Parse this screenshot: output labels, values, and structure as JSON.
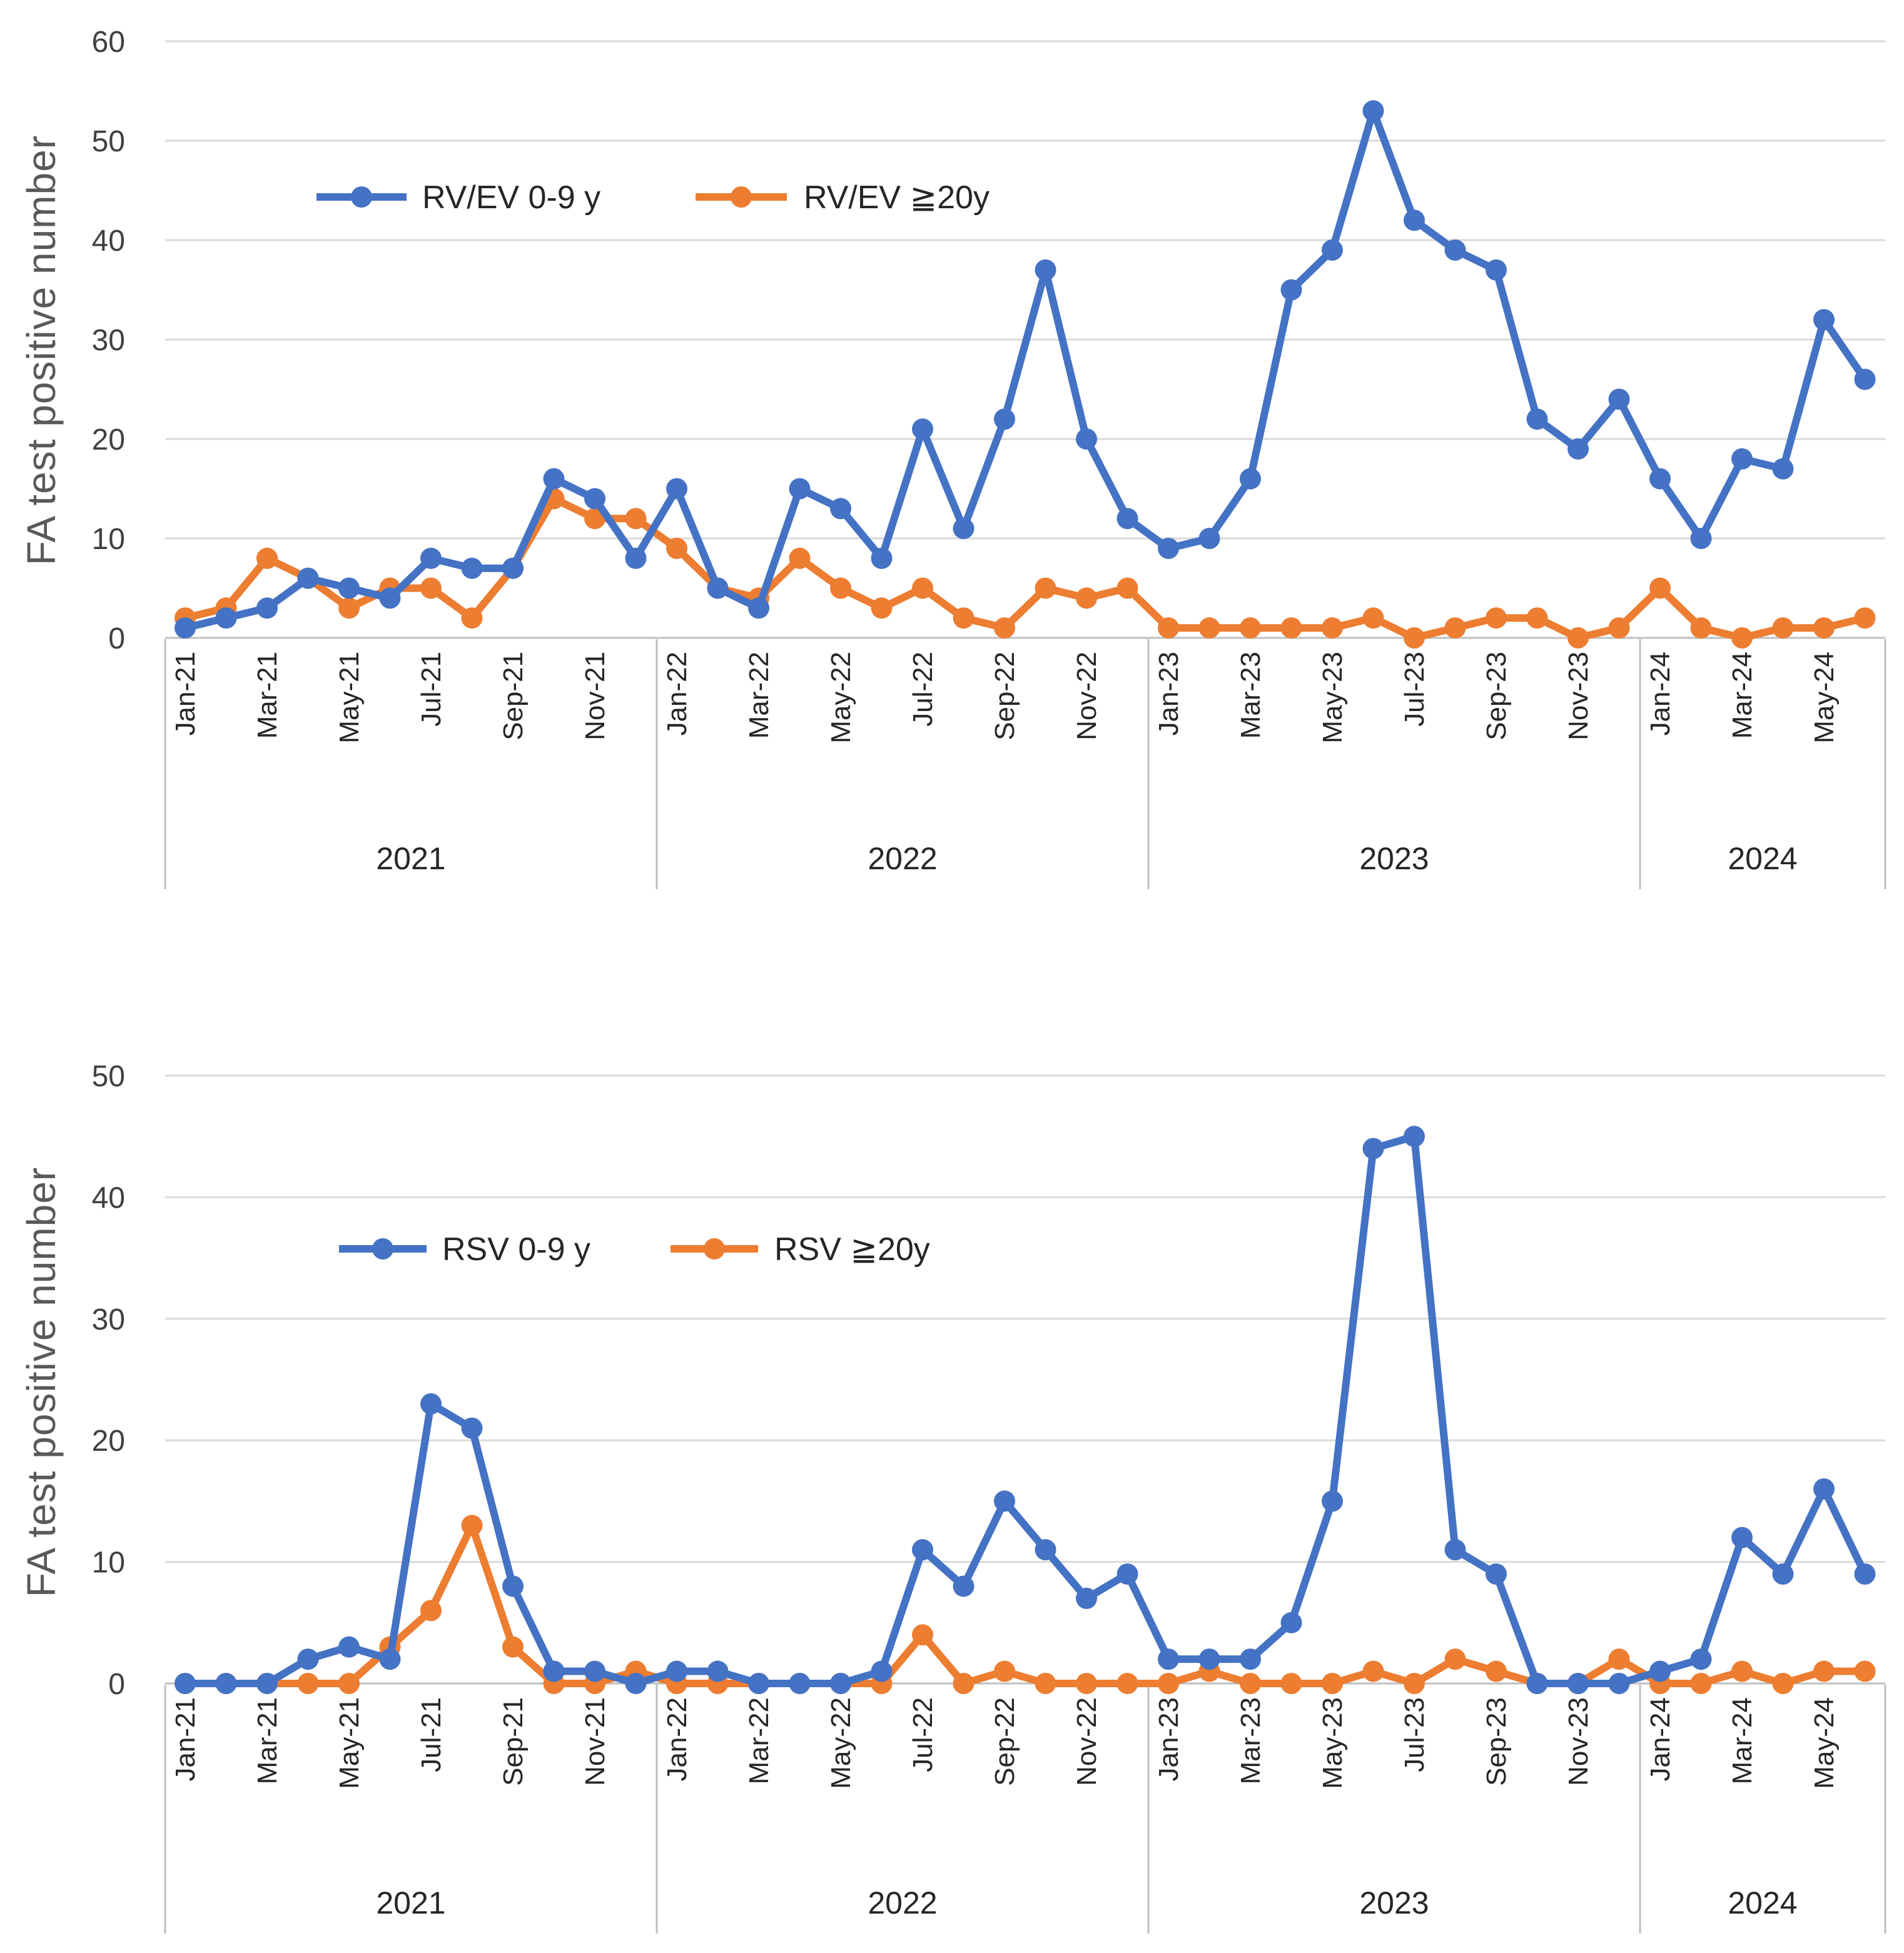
{
  "chart_data": [
    {
      "type": "line",
      "title": "",
      "ylabel": "FA test positive number",
      "xlabel": "",
      "ylim": [
        0,
        60
      ],
      "yticks": [
        0,
        10,
        20,
        30,
        40,
        50,
        60
      ],
      "grid": true,
      "legend_position": "upper-left",
      "categories": [
        "Jan-21",
        "Feb-21",
        "Mar-21",
        "Apr-21",
        "May-21",
        "Jun-21",
        "Jul-21",
        "Aug-21",
        "Sep-21",
        "Oct-21",
        "Nov-21",
        "Dec-21",
        "Jan-22",
        "Feb-22",
        "Mar-22",
        "Apr-22",
        "May-22",
        "Jun-22",
        "Jul-22",
        "Aug-22",
        "Sep-22",
        "Oct-22",
        "Nov-22",
        "Dec-22",
        "Jan-23",
        "Feb-23",
        "Mar-23",
        "Apr-23",
        "May-23",
        "Jun-23",
        "Jul-23",
        "Aug-23",
        "Sep-23",
        "Oct-23",
        "Nov-23",
        "Dec-23",
        "Jan-24",
        "Feb-24",
        "Mar-24",
        "Apr-24",
        "May-24",
        "Jun-24"
      ],
      "tick_labels": [
        "Jan-21",
        "Mar-21",
        "May-21",
        "Jul-21",
        "Sep-21",
        "Nov-21",
        "Jan-22",
        "Mar-22",
        "May-22",
        "Jul-22",
        "Sep-22",
        "Nov-22",
        "Jan-23",
        "Mar-23",
        "May-23",
        "Jul-23",
        "Sep-23",
        "Nov-23",
        "Jan-24",
        "Mar-24",
        "May-24"
      ],
      "year_groups": [
        {
          "label": "2021",
          "months": 12
        },
        {
          "label": "2022",
          "months": 12
        },
        {
          "label": "2023",
          "months": 12
        },
        {
          "label": "2024",
          "months": 6
        }
      ],
      "series": [
        {
          "name": "RV/EV 0-9 y",
          "color": "#4472C4",
          "values": [
            1,
            2,
            3,
            6,
            5,
            4,
            8,
            7,
            7,
            16,
            14,
            8,
            15,
            5,
            3,
            15,
            13,
            8,
            21,
            11,
            22,
            37,
            20,
            12,
            9,
            10,
            16,
            35,
            39,
            53,
            42,
            39,
            37,
            22,
            19,
            24,
            16,
            10,
            18,
            17,
            32,
            26
          ]
        },
        {
          "name": "RV/EV ≧20y",
          "color": "#ED7D31",
          "values": [
            2,
            3,
            8,
            6,
            3,
            5,
            5,
            2,
            7,
            14,
            12,
            12,
            9,
            5,
            4,
            8,
            5,
            3,
            5,
            2,
            1,
            5,
            4,
            5,
            1,
            1,
            1,
            1,
            1,
            2,
            0,
            1,
            2,
            2,
            0,
            1,
            5,
            1,
            0,
            1,
            1,
            2
          ]
        }
      ]
    },
    {
      "type": "line",
      "title": "",
      "ylabel": "FA test positive number",
      "xlabel": "",
      "ylim": [
        0,
        50
      ],
      "yticks": [
        0,
        10,
        20,
        30,
        40,
        50
      ],
      "grid": true,
      "legend_position": "upper-left",
      "categories": [
        "Jan-21",
        "Feb-21",
        "Mar-21",
        "Apr-21",
        "May-21",
        "Jun-21",
        "Jul-21",
        "Aug-21",
        "Sep-21",
        "Oct-21",
        "Nov-21",
        "Dec-21",
        "Jan-22",
        "Feb-22",
        "Mar-22",
        "Apr-22",
        "May-22",
        "Jun-22",
        "Jul-22",
        "Aug-22",
        "Sep-22",
        "Oct-22",
        "Nov-22",
        "Dec-22",
        "Jan-23",
        "Feb-23",
        "Mar-23",
        "Apr-23",
        "May-23",
        "Jun-23",
        "Jul-23",
        "Aug-23",
        "Sep-23",
        "Oct-23",
        "Nov-23",
        "Dec-23",
        "Jan-24",
        "Feb-24",
        "Mar-24",
        "Apr-24",
        "May-24",
        "Jun-24"
      ],
      "tick_labels": [
        "Jan-21",
        "Mar-21",
        "May-21",
        "Jul-21",
        "Sep-21",
        "Nov-21",
        "Jan-22",
        "Mar-22",
        "May-22",
        "Jul-22",
        "Sep-22",
        "Nov-22",
        "Jan-23",
        "Mar-23",
        "May-23",
        "Jul-23",
        "Sep-23",
        "Nov-23",
        "Jan-24",
        "Mar-24",
        "May-24"
      ],
      "year_groups": [
        {
          "label": "2021",
          "months": 12
        },
        {
          "label": "2022",
          "months": 12
        },
        {
          "label": "2023",
          "months": 12
        },
        {
          "label": "2024",
          "months": 6
        }
      ],
      "series": [
        {
          "name": "RSV 0-9 y",
          "color": "#4472C4",
          "values": [
            0,
            0,
            0,
            2,
            3,
            2,
            23,
            21,
            8,
            1,
            1,
            0,
            1,
            1,
            0,
            0,
            0,
            1,
            11,
            8,
            15,
            11,
            7,
            9,
            2,
            2,
            2,
            5,
            15,
            44,
            45,
            11,
            9,
            0,
            0,
            0,
            1,
            2,
            12,
            9,
            16,
            9
          ]
        },
        {
          "name": "RSV ≧20y",
          "color": "#ED7D31",
          "values": [
            0,
            0,
            0,
            0,
            0,
            3,
            6,
            13,
            3,
            0,
            0,
            1,
            0,
            0,
            0,
            0,
            0,
            0,
            4,
            0,
            1,
            0,
            0,
            0,
            0,
            1,
            0,
            0,
            0,
            1,
            0,
            2,
            1,
            0,
            0,
            2,
            0,
            0,
            1,
            0,
            1,
            1
          ]
        }
      ]
    }
  ]
}
